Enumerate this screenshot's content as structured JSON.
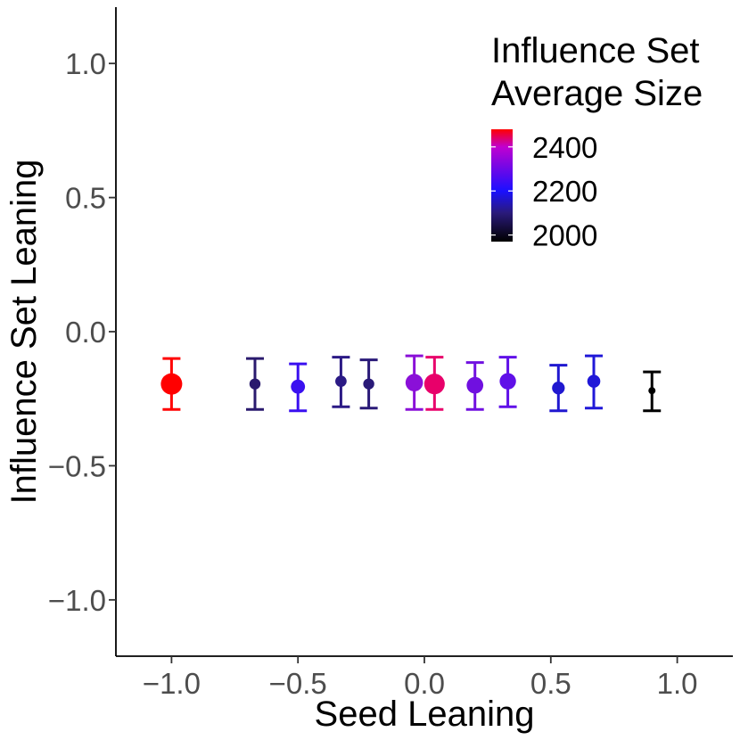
{
  "chart_data": {
    "type": "scatter",
    "title": "",
    "xlabel": "Seed Leaning",
    "ylabel": "Influence Set Leaning",
    "xlim": [
      -1.22,
      1.22
    ],
    "ylim": [
      -1.21,
      1.21
    ],
    "x_ticks": [
      -1.0,
      -0.5,
      0.0,
      0.5,
      1.0
    ],
    "x_tick_labels": [
      "−1.0",
      "−0.5",
      "0.0",
      "0.5",
      "1.0"
    ],
    "y_ticks": [
      -1.0,
      -0.5,
      0.0,
      0.5,
      1.0
    ],
    "y_tick_labels": [
      "−1.0",
      "−0.5",
      "0.0",
      "0.5",
      "1.0"
    ],
    "grid": false,
    "legend": {
      "title_lines": [
        "Influence Set",
        "Average Size"
      ],
      "placement": "top-right",
      "type": "colorbar",
      "range": [
        1970,
        2480
      ],
      "ticks": [
        2000,
        2200,
        2400
      ],
      "tick_labels": [
        "2000",
        "2200",
        "2400"
      ],
      "color_stops": [
        {
          "value": 1970,
          "color": "#000000"
        },
        {
          "value": 2100,
          "color": "#2a1a7a"
        },
        {
          "value": 2200,
          "color": "#1a10ff"
        },
        {
          "value": 2400,
          "color": "#c000d0"
        },
        {
          "value": 2480,
          "color": "#ff0000"
        }
      ]
    },
    "points": [
      {
        "x": -1.0,
        "y": -0.195,
        "ymin": -0.29,
        "ymax": -0.1,
        "size_value": 2480,
        "color": "#ff0000"
      },
      {
        "x": -0.67,
        "y": -0.195,
        "ymin": -0.29,
        "ymax": -0.1,
        "size_value": 2110,
        "color": "#2a1a6e"
      },
      {
        "x": -0.5,
        "y": -0.205,
        "ymin": -0.295,
        "ymax": -0.12,
        "size_value": 2220,
        "color": "#3a10f0"
      },
      {
        "x": -0.33,
        "y": -0.185,
        "ymin": -0.28,
        "ymax": -0.095,
        "size_value": 2120,
        "color": "#2b1a85"
      },
      {
        "x": -0.22,
        "y": -0.195,
        "ymin": -0.285,
        "ymax": -0.105,
        "size_value": 2110,
        "color": "#2a1a78"
      },
      {
        "x": -0.04,
        "y": -0.19,
        "ymin": -0.29,
        "ymax": -0.09,
        "size_value": 2340,
        "color": "#8a10d8"
      },
      {
        "x": 0.04,
        "y": -0.195,
        "ymin": -0.29,
        "ymax": -0.095,
        "size_value": 2450,
        "color": "#e8006a"
      },
      {
        "x": 0.2,
        "y": -0.2,
        "ymin": -0.29,
        "ymax": -0.115,
        "size_value": 2310,
        "color": "#7010e0"
      },
      {
        "x": 0.33,
        "y": -0.185,
        "ymin": -0.28,
        "ymax": -0.095,
        "size_value": 2300,
        "color": "#6010e8"
      },
      {
        "x": 0.53,
        "y": -0.21,
        "ymin": -0.295,
        "ymax": -0.125,
        "size_value": 2170,
        "color": "#2018d0"
      },
      {
        "x": 0.67,
        "y": -0.185,
        "ymin": -0.285,
        "ymax": -0.09,
        "size_value": 2180,
        "color": "#2018d8"
      },
      {
        "x": 0.9,
        "y": -0.22,
        "ymin": -0.295,
        "ymax": -0.15,
        "size_value": 1970,
        "color": "#000000"
      }
    ]
  }
}
